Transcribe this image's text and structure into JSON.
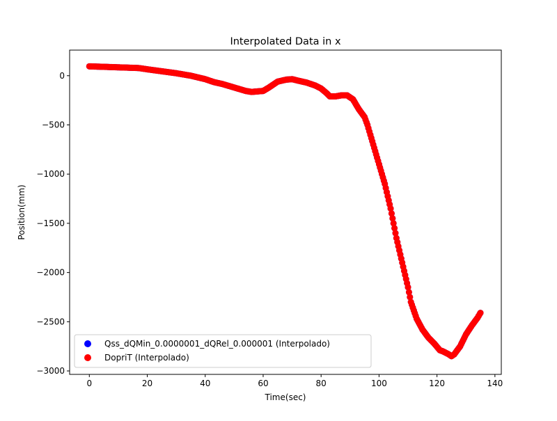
{
  "chart_data": {
    "type": "scatter",
    "title": "Interpolated Data in x",
    "xlabel": "Time(sec)",
    "ylabel": "Position(mm)",
    "xlim": [
      -6.8,
      142.2
    ],
    "ylim": [
      -3035,
      260
    ],
    "xticks": [
      0,
      20,
      40,
      60,
      80,
      100,
      120,
      140
    ],
    "yticks": [
      0,
      -500,
      -1000,
      -1500,
      -2000,
      -2500,
      -3000
    ],
    "xtick_labels": [
      "0",
      "20",
      "40",
      "60",
      "80",
      "100",
      "120",
      "140"
    ],
    "ytick_labels": [
      "0",
      "−500",
      "−1000",
      "−1500",
      "−2000",
      "−2500",
      "−3000"
    ],
    "grid": false,
    "legend_position": "lower-left",
    "colors": {
      "series1": "#0000ff",
      "series2": "#ff0000"
    },
    "series": [
      {
        "name": "Qss_dQMin_0.0000001_dQRel_0.000001 (Interpolado)",
        "x": [
          0,
          5,
          10,
          15,
          17,
          20,
          25,
          30,
          35,
          40,
          43,
          46,
          50,
          54,
          56,
          58,
          60,
          62,
          65,
          68,
          70,
          72,
          75,
          78,
          80,
          82,
          83,
          85,
          87,
          89,
          91,
          93,
          95,
          96,
          98,
          100,
          102,
          104,
          106,
          108,
          110,
          111,
          113,
          115,
          117,
          119,
          121,
          122,
          124,
          125,
          126,
          128,
          130,
          132,
          133,
          134,
          135
        ],
        "y": [
          95,
          90,
          85,
          80,
          78,
          65,
          45,
          25,
          0,
          -35,
          -65,
          -85,
          -120,
          -155,
          -165,
          -160,
          -155,
          -120,
          -60,
          -40,
          -35,
          -50,
          -70,
          -100,
          -130,
          -180,
          -210,
          -210,
          -200,
          -200,
          -240,
          -340,
          -420,
          -500,
          -700,
          -900,
          -1100,
          -1350,
          -1650,
          -1900,
          -2150,
          -2300,
          -2470,
          -2580,
          -2660,
          -2720,
          -2790,
          -2800,
          -2830,
          -2850,
          -2830,
          -2750,
          -2630,
          -2540,
          -2500,
          -2460,
          -2410
        ]
      },
      {
        "name": "DopriT (Interpolado)",
        "x": [
          0,
          5,
          10,
          15,
          17,
          20,
          25,
          30,
          35,
          40,
          43,
          46,
          50,
          54,
          56,
          58,
          60,
          62,
          65,
          68,
          70,
          72,
          75,
          78,
          80,
          82,
          83,
          85,
          87,
          89,
          91,
          93,
          95,
          96,
          98,
          100,
          102,
          104,
          106,
          108,
          110,
          111,
          113,
          115,
          117,
          119,
          121,
          122,
          124,
          125,
          126,
          128,
          130,
          132,
          133,
          134,
          135
        ],
        "y": [
          95,
          90,
          85,
          80,
          78,
          65,
          45,
          25,
          0,
          -35,
          -65,
          -85,
          -120,
          -155,
          -165,
          -160,
          -155,
          -120,
          -60,
          -40,
          -35,
          -50,
          -70,
          -100,
          -130,
          -180,
          -210,
          -210,
          -200,
          -200,
          -240,
          -340,
          -420,
          -500,
          -700,
          -900,
          -1100,
          -1350,
          -1650,
          -1900,
          -2150,
          -2300,
          -2470,
          -2580,
          -2660,
          -2720,
          -2790,
          -2800,
          -2830,
          -2850,
          -2830,
          -2750,
          -2630,
          -2540,
          -2500,
          -2460,
          -2410
        ]
      }
    ]
  }
}
